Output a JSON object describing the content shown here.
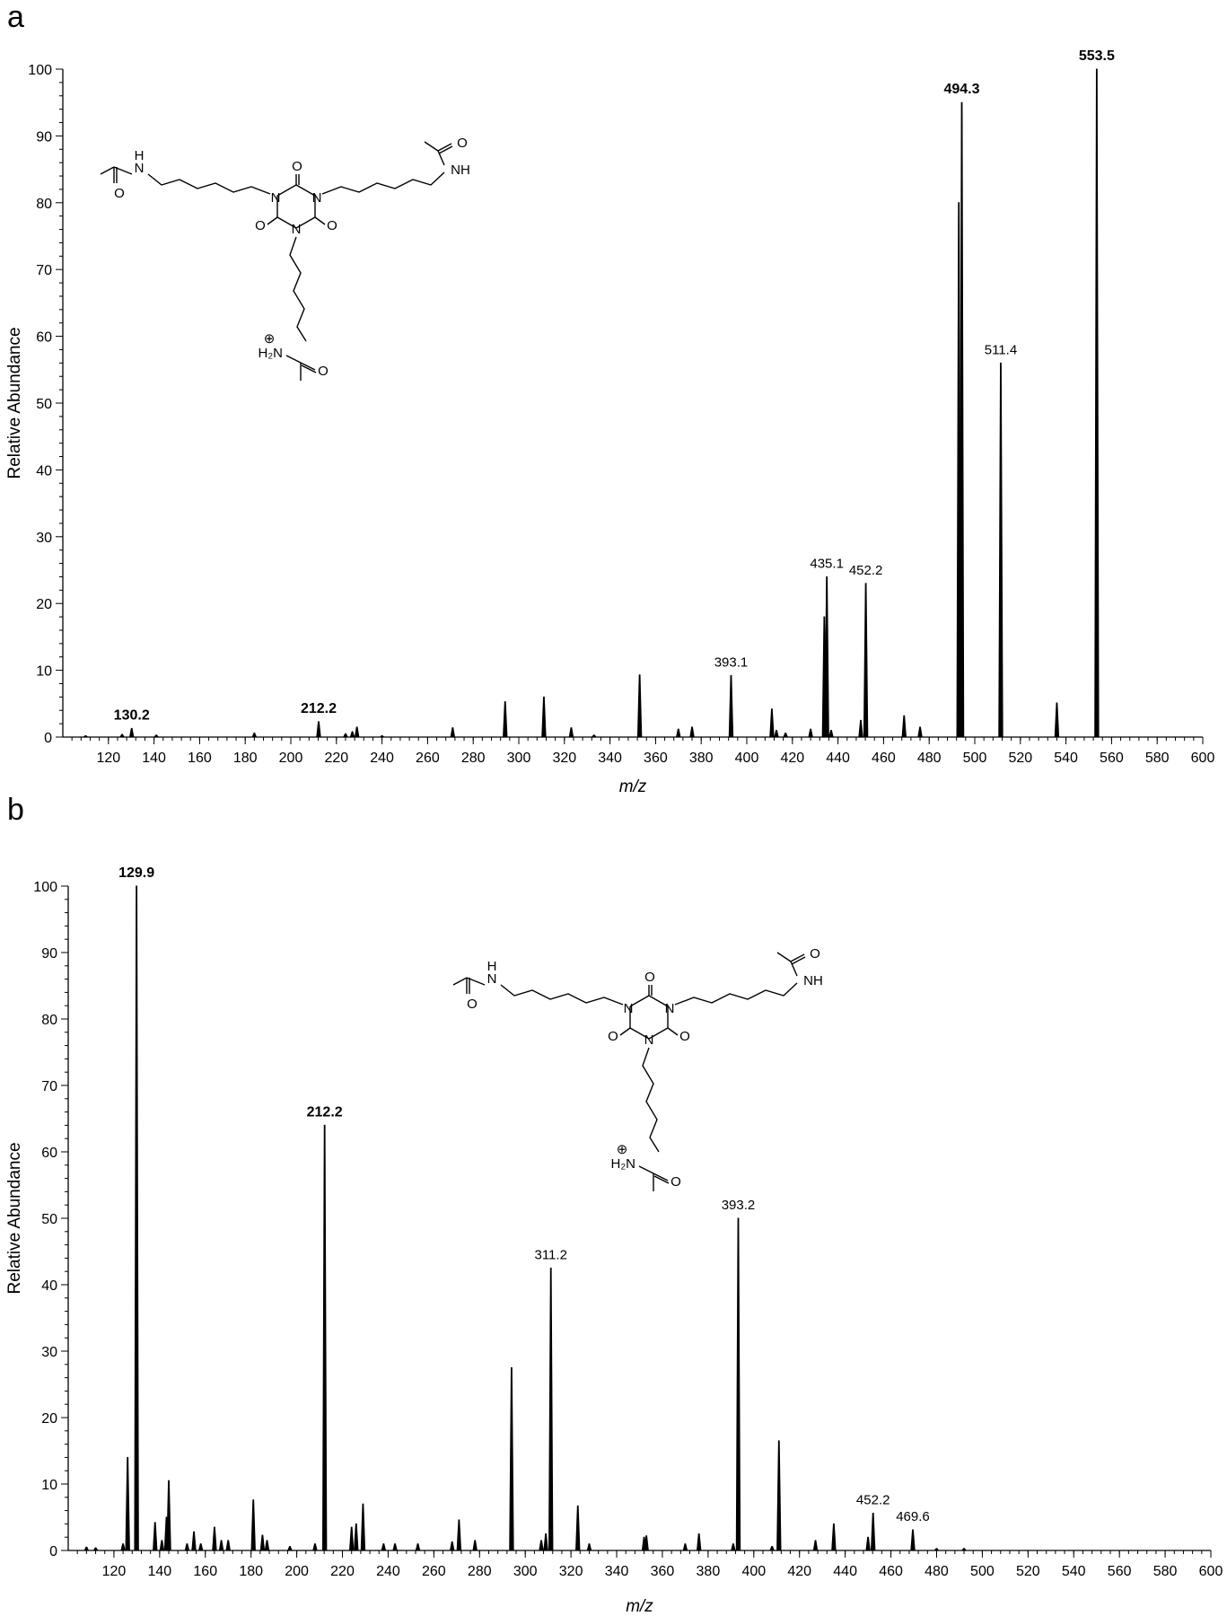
{
  "chart_data": [
    {
      "panel": "a",
      "type": "bar",
      "xlabel": "m/z",
      "ylabel": "Relative Abundance",
      "xlim": [
        100,
        600
      ],
      "ylim": [
        0,
        100
      ],
      "xticks": [
        120,
        140,
        160,
        180,
        200,
        220,
        240,
        260,
        280,
        300,
        320,
        340,
        360,
        380,
        400,
        420,
        440,
        460,
        480,
        500,
        520,
        540,
        560,
        580,
        600
      ],
      "yticks": [
        0,
        10,
        20,
        30,
        40,
        50,
        60,
        70,
        80,
        90,
        100
      ],
      "peaks": [
        {
          "x": 110,
          "y": 0.2
        },
        {
          "x": 126,
          "y": 0.4
        },
        {
          "x": 130.2,
          "y": 1.3
        },
        {
          "x": 141,
          "y": 0.3
        },
        {
          "x": 184,
          "y": 0.6
        },
        {
          "x": 212.2,
          "y": 2.3
        },
        {
          "x": 224,
          "y": 0.5
        },
        {
          "x": 227,
          "y": 0.8
        },
        {
          "x": 229,
          "y": 1.5
        },
        {
          "x": 240,
          "y": 0.2
        },
        {
          "x": 271,
          "y": 1.4
        },
        {
          "x": 294,
          "y": 5.3
        },
        {
          "x": 311,
          "y": 6.0
        },
        {
          "x": 323,
          "y": 1.4
        },
        {
          "x": 333,
          "y": 0.3
        },
        {
          "x": 353,
          "y": 9.3
        },
        {
          "x": 370,
          "y": 1.2
        },
        {
          "x": 376,
          "y": 1.5
        },
        {
          "x": 393.1,
          "y": 9.2
        },
        {
          "x": 411,
          "y": 4.2
        },
        {
          "x": 413,
          "y": 1.0
        },
        {
          "x": 417,
          "y": 0.6
        },
        {
          "x": 428,
          "y": 1.2
        },
        {
          "x": 435.1,
          "y": 24
        },
        {
          "x": 434,
          "y": 18
        },
        {
          "x": 437,
          "y": 1.0
        },
        {
          "x": 450,
          "y": 2.5
        },
        {
          "x": 452.2,
          "y": 23
        },
        {
          "x": 469,
          "y": 3.2
        },
        {
          "x": 476,
          "y": 1.5
        },
        {
          "x": 493,
          "y": 80
        },
        {
          "x": 494.3,
          "y": 95
        },
        {
          "x": 511.4,
          "y": 56
        },
        {
          "x": 536,
          "y": 5.1
        },
        {
          "x": 553.5,
          "y": 100
        }
      ],
      "annotations": [
        {
          "x": 130.2,
          "y": 1.3,
          "text": "130.2",
          "bold": true
        },
        {
          "x": 212.2,
          "y": 2.3,
          "text": "212.2",
          "bold": true
        },
        {
          "x": 393.1,
          "y": 9.2,
          "text": "393.1",
          "bold": false
        },
        {
          "x": 435.1,
          "y": 24,
          "text": "435.1",
          "bold": false
        },
        {
          "x": 452.2,
          "y": 23,
          "text": "452.2",
          "bold": false
        },
        {
          "x": 494.3,
          "y": 95,
          "text": "494.3",
          "bold": true
        },
        {
          "x": 511.4,
          "y": 56,
          "text": "511.4",
          "bold": false
        },
        {
          "x": 553.5,
          "y": 100,
          "text": "553.5",
          "bold": true
        }
      ]
    },
    {
      "panel": "b",
      "type": "bar",
      "xlabel": "m/z",
      "ylabel": "Relative Abundance",
      "xlim": [
        100,
        600
      ],
      "ylim": [
        0,
        100
      ],
      "xticks": [
        120,
        140,
        160,
        180,
        200,
        220,
        240,
        260,
        280,
        300,
        320,
        340,
        360,
        380,
        400,
        420,
        440,
        460,
        480,
        500,
        520,
        540,
        560,
        580,
        600
      ],
      "yticks": [
        0,
        10,
        20,
        30,
        40,
        50,
        60,
        70,
        80,
        90,
        100
      ],
      "peaks": [
        {
          "x": 108,
          "y": 0.5
        },
        {
          "x": 112,
          "y": 0.4
        },
        {
          "x": 124,
          "y": 1.0
        },
        {
          "x": 126,
          "y": 14
        },
        {
          "x": 129.9,
          "y": 100
        },
        {
          "x": 138,
          "y": 4.2
        },
        {
          "x": 141,
          "y": 1.5
        },
        {
          "x": 143,
          "y": 5.0
        },
        {
          "x": 144,
          "y": 10.5
        },
        {
          "x": 152,
          "y": 1.0
        },
        {
          "x": 155,
          "y": 2.8
        },
        {
          "x": 158,
          "y": 1.0
        },
        {
          "x": 164,
          "y": 3.5
        },
        {
          "x": 167,
          "y": 1.5
        },
        {
          "x": 170,
          "y": 1.5
        },
        {
          "x": 181,
          "y": 7.6
        },
        {
          "x": 185,
          "y": 2.3
        },
        {
          "x": 187,
          "y": 1.5
        },
        {
          "x": 197,
          "y": 0.6
        },
        {
          "x": 208,
          "y": 1.0
        },
        {
          "x": 212.2,
          "y": 64
        },
        {
          "x": 224,
          "y": 3.5
        },
        {
          "x": 226,
          "y": 4.0
        },
        {
          "x": 229,
          "y": 7.0
        },
        {
          "x": 238,
          "y": 1.0
        },
        {
          "x": 243,
          "y": 1.0
        },
        {
          "x": 253,
          "y": 1.0
        },
        {
          "x": 268,
          "y": 1.3
        },
        {
          "x": 271,
          "y": 4.6
        },
        {
          "x": 278,
          "y": 1.5
        },
        {
          "x": 294,
          "y": 27.5
        },
        {
          "x": 307,
          "y": 1.5
        },
        {
          "x": 309,
          "y": 2.5
        },
        {
          "x": 311.2,
          "y": 42.5
        },
        {
          "x": 323,
          "y": 6.7
        },
        {
          "x": 328,
          "y": 1.0
        },
        {
          "x": 352,
          "y": 2.0
        },
        {
          "x": 353,
          "y": 2.2
        },
        {
          "x": 370,
          "y": 1.0
        },
        {
          "x": 376,
          "y": 2.5
        },
        {
          "x": 391,
          "y": 1.0
        },
        {
          "x": 393.2,
          "y": 50
        },
        {
          "x": 408,
          "y": 0.6
        },
        {
          "x": 411,
          "y": 16.5
        },
        {
          "x": 427,
          "y": 1.5
        },
        {
          "x": 435,
          "y": 4.0
        },
        {
          "x": 450,
          "y": 2.0
        },
        {
          "x": 452.2,
          "y": 5.6
        },
        {
          "x": 469.6,
          "y": 3.1
        },
        {
          "x": 480,
          "y": 0.3
        },
        {
          "x": 492,
          "y": 0.3
        }
      ],
      "annotations": [
        {
          "x": 129.9,
          "y": 100,
          "text": "129.9",
          "bold": true
        },
        {
          "x": 212.2,
          "y": 64,
          "text": "212.2",
          "bold": true
        },
        {
          "x": 311.2,
          "y": 42.5,
          "text": "311.2",
          "bold": false
        },
        {
          "x": 393.2,
          "y": 50,
          "text": "393.2",
          "bold": false
        },
        {
          "x": 452.2,
          "y": 5.6,
          "text": "452.2",
          "bold": false
        },
        {
          "x": 469.6,
          "y": 3.1,
          "text": "469.6",
          "bold": false
        }
      ]
    }
  ],
  "molecule": {
    "atoms": [
      "N",
      "N",
      "N",
      "O",
      "O",
      "O",
      "H",
      "NH",
      "O",
      "O",
      "H₂N",
      "O",
      "⊕"
    ]
  }
}
